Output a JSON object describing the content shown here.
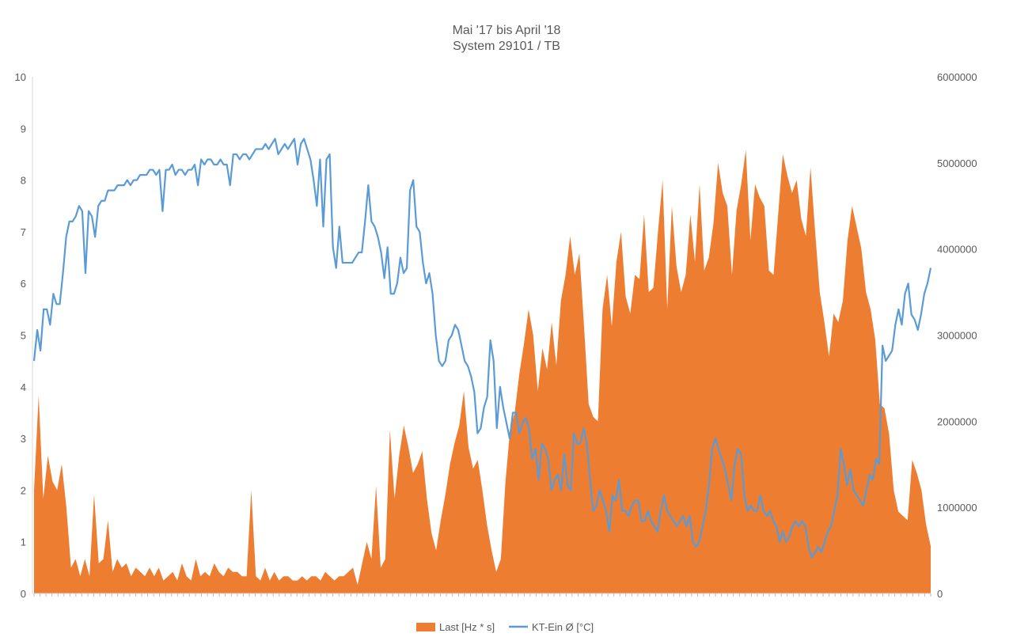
{
  "chart_data": {
    "type": "area+line",
    "title": "Mai '17 bis April '18",
    "subtitle": "System 29101 / TB",
    "left_axis": {
      "ylim": [
        0,
        10
      ],
      "ticks": [
        "0",
        "1",
        "2",
        "3",
        "4",
        "5",
        "6",
        "7",
        "8",
        "9",
        "10"
      ]
    },
    "right_axis": {
      "ylim": [
        0,
        6000000
      ],
      "ticks": [
        "0",
        "1000000",
        "2000000",
        "3000000",
        "4000000",
        "5000000",
        "6000000"
      ]
    },
    "grid": false,
    "legend_position": "bottom",
    "series": [
      {
        "name": "Last [Hz * s]",
        "type": "area",
        "axis": "right",
        "color": "#ED7D31",
        "values": [
          1200000,
          2300000,
          1100000,
          1600000,
          1300000,
          1200000,
          1500000,
          1000000,
          300000,
          400000,
          200000,
          400000,
          200000,
          1150000,
          350000,
          400000,
          850000,
          250000,
          400000,
          300000,
          350000,
          200000,
          300000,
          250000,
          200000,
          300000,
          200000,
          300000,
          150000,
          200000,
          250000,
          150000,
          350000,
          200000,
          150000,
          400000,
          200000,
          250000,
          200000,
          350000,
          250000,
          200000,
          300000,
          250000,
          250000,
          200000,
          200000,
          1200000,
          200000,
          150000,
          300000,
          150000,
          250000,
          150000,
          200000,
          200000,
          150000,
          150000,
          200000,
          150000,
          200000,
          200000,
          150000,
          250000,
          200000,
          150000,
          200000,
          200000,
          250000,
          300000,
          100000,
          350000,
          600000,
          400000,
          1250000,
          300000,
          400000,
          1900000,
          1100000,
          1600000,
          1950000,
          1700000,
          1400000,
          1500000,
          1650000,
          1100000,
          700000,
          500000,
          850000,
          1150000,
          1500000,
          1750000,
          1950000,
          2350000,
          1700000,
          1450000,
          1550000,
          1200000,
          800000,
          500000,
          250000,
          400000,
          1300000,
          1900000,
          2100000,
          2550000,
          2900000,
          3300000,
          3000000,
          2350000,
          2850000,
          2600000,
          3150000,
          2650000,
          3400000,
          3700000,
          4150000,
          3700000,
          3950000,
          3100000,
          2200000,
          2050000,
          2000000,
          3300000,
          3700000,
          3100000,
          3850000,
          4200000,
          3450000,
          3250000,
          3700000,
          3650000,
          4400000,
          3500000,
          3550000,
          4200000,
          4800000,
          3300000,
          4500000,
          3800000,
          3500000,
          3700000,
          4400000,
          3850000,
          4750000,
          3750000,
          3900000,
          4300000,
          5000000,
          4650000,
          4500000,
          3700000,
          4450000,
          4750000,
          5150000,
          4100000,
          4750000,
          4600000,
          4500000,
          3750000,
          3700000,
          4400000,
          5100000,
          4850000,
          4650000,
          4800000,
          4350000,
          4150000,
          4950000,
          4200000,
          3500000,
          3150000,
          2750000,
          3250000,
          3150000,
          3400000,
          4100000,
          4500000,
          4250000,
          4000000,
          3500000,
          3300000,
          2950000,
          2200000,
          2150000,
          1850000,
          1200000,
          950000,
          900000,
          850000,
          1550000,
          1400000,
          1200000,
          800000,
          550000
        ]
      },
      {
        "name": "KT-Ein Ø [°C]",
        "type": "line",
        "axis": "left",
        "color": "#5B9BD5",
        "values": [
          4.5,
          5.1,
          4.7,
          5.5,
          5.5,
          5.2,
          5.8,
          5.6,
          5.6,
          6.2,
          6.9,
          7.2,
          7.2,
          7.3,
          7.5,
          7.4,
          6.2,
          7.4,
          7.3,
          6.9,
          7.5,
          7.6,
          7.6,
          7.8,
          7.8,
          7.8,
          7.9,
          7.9,
          7.9,
          8.0,
          7.9,
          8.0,
          8.0,
          8.1,
          8.1,
          8.1,
          8.2,
          8.2,
          8.1,
          8.2,
          7.4,
          8.2,
          8.2,
          8.3,
          8.1,
          8.2,
          8.2,
          8.1,
          8.2,
          8.2,
          8.3,
          7.9,
          8.4,
          8.3,
          8.4,
          8.4,
          8.3,
          8.3,
          8.4,
          8.3,
          8.3,
          7.9,
          8.5,
          8.5,
          8.4,
          8.5,
          8.5,
          8.4,
          8.5,
          8.6,
          8.6,
          8.6,
          8.7,
          8.6,
          8.7,
          8.8,
          8.5,
          8.6,
          8.7,
          8.6,
          8.7,
          8.8,
          8.3,
          8.7,
          8.8,
          8.6,
          8.4,
          8.0,
          7.5,
          8.4,
          7.1,
          8.4,
          8.5,
          6.7,
          6.3,
          7.1,
          6.4,
          6.4,
          6.4,
          6.4,
          6.5,
          6.6,
          6.6,
          7.2,
          7.9,
          7.2,
          7.1,
          6.9,
          6.6,
          6.1,
          6.7,
          5.8,
          5.8,
          6.0,
          6.5,
          6.2,
          6.3,
          7.8,
          8.0,
          7.1,
          7.0,
          6.4,
          6.0,
          6.2,
          5.8,
          5.0,
          4.5,
          4.4,
          4.5,
          4.9,
          5.0,
          5.2,
          5.1,
          4.8,
          4.5,
          4.4,
          4.2,
          3.9,
          3.1,
          3.2,
          3.6,
          3.8,
          4.9,
          4.5,
          3.2,
          4.0,
          3.6,
          3.3,
          3.0,
          3.5,
          3.5,
          3.1,
          3.3,
          3.4,
          3.2,
          2.6,
          2.8,
          2.2,
          2.9,
          2.8,
          2.6,
          2.0,
          2.2,
          2.3,
          2.0,
          2.7,
          2.1,
          2.0,
          3.1,
          2.9,
          2.9,
          3.2,
          2.9,
          2.2,
          1.6,
          1.7,
          2.0,
          1.8,
          1.6,
          1.2,
          1.9,
          1.8,
          2.2,
          1.6,
          1.6,
          1.5,
          1.7,
          1.8,
          1.8,
          1.4,
          1.4,
          1.6,
          1.4,
          1.3,
          1.2,
          1.6,
          1.9,
          1.6,
          1.5,
          1.4,
          1.3,
          1.4,
          1.5,
          1.3,
          1.5,
          1.0,
          0.9,
          1.0,
          1.3,
          1.6,
          2.1,
          2.8,
          3.0,
          2.8,
          2.6,
          2.4,
          2.1,
          1.8,
          2.5,
          2.8,
          2.7,
          1.9,
          1.6,
          1.7,
          1.6,
          1.6,
          1.9,
          1.6,
          1.5,
          1.6,
          1.4,
          1.3,
          1.0,
          1.2,
          1.0,
          1.1,
          1.3,
          1.4,
          1.3,
          1.4,
          1.3,
          0.9,
          0.7,
          0.8,
          0.9,
          0.8,
          1.0,
          1.2,
          1.3,
          1.6,
          1.9,
          2.8,
          2.5,
          2.1,
          2.4,
          2.0,
          1.9,
          1.8,
          1.7,
          2.0,
          2.3,
          2.2,
          2.6,
          2.5,
          4.8,
          4.5,
          4.6,
          4.7,
          5.2,
          5.5,
          5.2,
          5.8,
          6.0,
          5.4,
          5.3,
          5.1,
          5.4,
          5.8,
          6.0,
          6.3
        ]
      }
    ]
  },
  "legend": {
    "items": [
      {
        "label": "Last [Hz * s]",
        "kind": "area",
        "color": "#ED7D31"
      },
      {
        "label": "KT-Ein Ø [°C]",
        "kind": "line",
        "color": "#5B9BD5"
      }
    ]
  }
}
